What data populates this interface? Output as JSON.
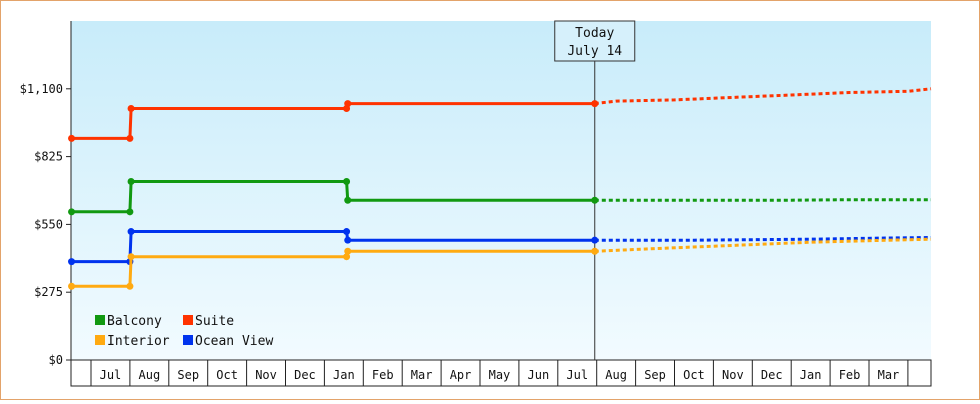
{
  "chart_data": {
    "type": "line",
    "title": "",
    "xlabel": "",
    "ylabel": "",
    "ylim": [
      0,
      1375
    ],
    "y_ticks": [
      0,
      275,
      550,
      825,
      1100
    ],
    "y_tick_labels": [
      "$0",
      "$275",
      "$550",
      "$825",
      "$1,100"
    ],
    "x_ticks": [
      "Jul",
      "Aug",
      "Sep",
      "Oct",
      "Nov",
      "Dec",
      "Jan",
      "Feb",
      "Mar",
      "Apr",
      "May",
      "Jun",
      "Jul",
      "Aug",
      "Sep",
      "Oct",
      "Nov",
      "Dec",
      "Jan",
      "Feb",
      "Mar"
    ],
    "today_marker": {
      "line1": "Today",
      "line2": "July 14"
    },
    "series": [
      {
        "name": "Suite",
        "color": "#ff3300",
        "points": [
          [
            -1,
            899
          ],
          [
            0.5,
            899
          ],
          [
            0.53,
            1020
          ],
          [
            6.07,
            1020
          ],
          [
            6.1,
            1040
          ],
          [
            12.45,
            1040
          ]
        ],
        "projection": [
          [
            12.45,
            1040
          ],
          [
            13,
            1050
          ],
          [
            14.5,
            1055
          ],
          [
            16,
            1065
          ],
          [
            17.5,
            1075
          ],
          [
            19,
            1085
          ],
          [
            20.5,
            1090
          ],
          [
            22,
            1100
          ]
        ]
      },
      {
        "name": "Balcony",
        "color": "#119911",
        "points": [
          [
            -1,
            601
          ],
          [
            0.5,
            601
          ],
          [
            0.53,
            724
          ],
          [
            6.07,
            724
          ],
          [
            6.1,
            648
          ],
          [
            12.45,
            648
          ]
        ],
        "projection": [
          [
            12.45,
            648
          ],
          [
            15,
            648
          ],
          [
            17.5,
            648
          ],
          [
            19,
            650
          ],
          [
            22,
            650
          ]
        ]
      },
      {
        "name": "Ocean View",
        "color": "#0033ee",
        "points": [
          [
            -1,
            399
          ],
          [
            0.5,
            399
          ],
          [
            0.53,
            521
          ],
          [
            6.07,
            521
          ],
          [
            6.1,
            486
          ],
          [
            12.45,
            486
          ]
        ],
        "projection": [
          [
            12.45,
            486
          ],
          [
            15,
            486
          ],
          [
            18,
            490
          ],
          [
            20,
            495
          ],
          [
            22,
            497
          ]
        ]
      },
      {
        "name": "Interior",
        "color": "#ffaa11",
        "points": [
          [
            -1,
            299
          ],
          [
            0.5,
            299
          ],
          [
            0.53,
            419
          ],
          [
            6.07,
            419
          ],
          [
            6.1,
            441
          ],
          [
            12.45,
            441
          ]
        ],
        "projection": [
          [
            12.45,
            441
          ],
          [
            14,
            452
          ],
          [
            16,
            465
          ],
          [
            18,
            478
          ],
          [
            20,
            486
          ],
          [
            22,
            490
          ]
        ]
      }
    ],
    "legend": [
      {
        "name": "Balcony",
        "color": "#119911"
      },
      {
        "name": "Suite",
        "color": "#ff3300"
      },
      {
        "name": "Interior",
        "color": "#ffaa11"
      },
      {
        "name": "Ocean View",
        "color": "#0033ee"
      }
    ],
    "grid": false,
    "legend_position": "bottom-left"
  }
}
